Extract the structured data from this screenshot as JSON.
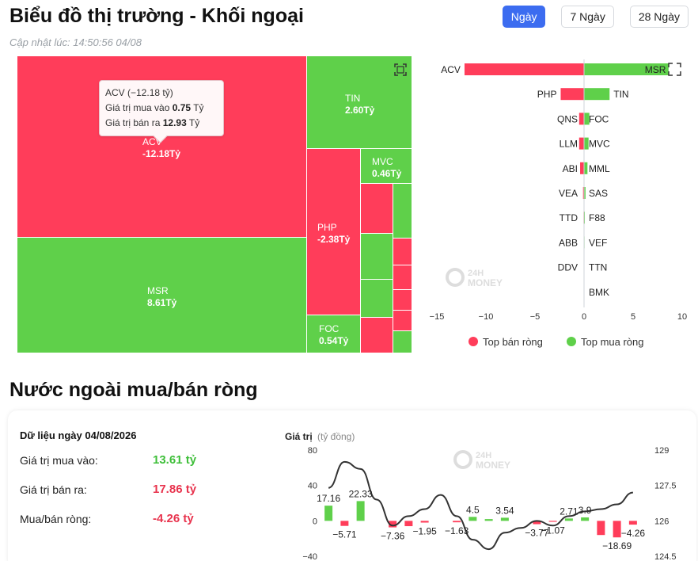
{
  "header": {
    "title": "Biểu đồ thị trường - Khối ngoại",
    "updated": "Cập nhật lúc: 14:50:56 04/08",
    "tabs": [
      {
        "label": "Ngày",
        "active": true
      },
      {
        "label": "7 Ngày",
        "active": false
      },
      {
        "label": "28 Ngày",
        "active": false
      }
    ]
  },
  "colors": {
    "sell": "#ff3d5a",
    "buy": "#5fd04a",
    "accent": "#3c6cf0",
    "line": "#333333"
  },
  "tooltip": {
    "title": "ACV (−12.18 tỷ)",
    "buy_label": "Giá trị mua vào",
    "buy_value": "0.75",
    "buy_unit": "Tỷ",
    "sell_label": "Giá trị bán ra",
    "sell_value": "12.93",
    "sell_unit": "Tỷ"
  },
  "treemap": {
    "labels": [
      {
        "name": "ACV",
        "value": "-12.18Tỷ"
      },
      {
        "name": "MSR",
        "value": "8.61Tỷ"
      },
      {
        "name": "TIN",
        "value": "2.60Tỷ"
      },
      {
        "name": "PHP",
        "value": "-2.38Tỷ"
      },
      {
        "name": "MVC",
        "value": "0.46Tỷ"
      },
      {
        "name": "FOC",
        "value": "0.54Tỷ"
      }
    ]
  },
  "watermark": {
    "line1": "24H",
    "line2": "MONEY"
  },
  "section": {
    "title": "Nước ngoài mua/bán ròng"
  },
  "summary": {
    "title": "Dữ liệu ngày 04/08/2026",
    "rows": [
      {
        "label": "Giá trị mua vào:",
        "value": "13.61 tỷ"
      },
      {
        "label": "Giá trị bán ra:",
        "value": "17.86 tỷ"
      },
      {
        "label": "Mua/bán ròng:",
        "value": "-4.26 tỷ"
      }
    ]
  },
  "chart_data": [
    {
      "type": "treemap",
      "items": [
        {
          "name": "ACV",
          "net": -12.18,
          "buy": 0.75,
          "sell": 12.93
        },
        {
          "name": "MSR",
          "net": 8.61
        },
        {
          "name": "TIN",
          "net": 2.6
        },
        {
          "name": "PHP",
          "net": -2.38
        },
        {
          "name": "MVC",
          "net": 0.46
        },
        {
          "name": "FOC",
          "net": 0.54
        }
      ]
    },
    {
      "type": "bar",
      "orientation": "horizontal",
      "rows": [
        {
          "sell": "ACV",
          "buy": "MSR",
          "sell_value": -12.18,
          "buy_value": 8.61
        },
        {
          "sell": "PHP",
          "buy": "TIN",
          "sell_value": -2.38,
          "buy_value": 2.6
        },
        {
          "sell": "QNS",
          "buy": "FOC",
          "sell_value": -0.5,
          "buy_value": 0.54
        },
        {
          "sell": "LLM",
          "buy": "MVC",
          "sell_value": -0.5,
          "buy_value": 0.46
        },
        {
          "sell": "ABI",
          "buy": "MML",
          "sell_value": -0.4,
          "buy_value": 0.35
        },
        {
          "sell": "VEA",
          "buy": "SAS",
          "sell_value": -0.1,
          "buy_value": 0.15
        },
        {
          "sell": "TTD",
          "buy": "F88",
          "sell_value": -0.05,
          "buy_value": 0.08
        },
        {
          "sell": "ABB",
          "buy": "VEF",
          "sell_value": -0.04,
          "buy_value": 0.05
        },
        {
          "sell": "DDV",
          "buy": "TTN",
          "sell_value": -0.03,
          "buy_value": 0.03
        },
        {
          "sell": "",
          "buy": "BMK",
          "sell_value": 0,
          "buy_value": 0.02
        }
      ],
      "xlim": [
        -15,
        10
      ],
      "xticks": [
        "−15",
        "−10",
        "−5",
        "0",
        "5",
        "10"
      ],
      "legend": [
        {
          "name": "Top bán ròng",
          "color": "#ff3d5a"
        },
        {
          "name": "Top mua ròng",
          "color": "#5fd04a"
        }
      ],
      "legend_position": "bottom"
    },
    {
      "type": "bar",
      "ylabel": "Giá trị",
      "yunit": "(tỷ đồng)",
      "ylim": [
        -40,
        80
      ],
      "yticks": [
        "80",
        "40",
        "0",
        "−40"
      ],
      "y2lim": [
        124.5,
        129
      ],
      "y2ticks": [
        "129",
        "127.5",
        "126",
        "124.5"
      ],
      "values": [
        17.16,
        -5.71,
        22.33,
        0,
        -7.36,
        -6.0,
        -1.95,
        0,
        -1.63,
        4.5,
        2.0,
        3.54,
        0,
        -3.77,
        -1.07,
        2.71,
        3.9,
        -16.0,
        -18.69,
        -4.26
      ],
      "data_labels": [
        "17.16",
        "−5.71",
        "22.33",
        "",
        "−7.36",
        "",
        "−1.95",
        "",
        "−1.63",
        "4.5",
        "",
        "3.54",
        "",
        "−3.77",
        "−1.07",
        "2.71",
        "3.9",
        "",
        "−18.69",
        "−4.26"
      ],
      "line": [
        127.4,
        128.5,
        128.2,
        126.9,
        125.8,
        126.2,
        126.5,
        127.1,
        126.2,
        125.2,
        124.8,
        125.5,
        125.7,
        126.0,
        125.8,
        126.2,
        126.4,
        126.5,
        126.7,
        127.2
      ]
    }
  ]
}
